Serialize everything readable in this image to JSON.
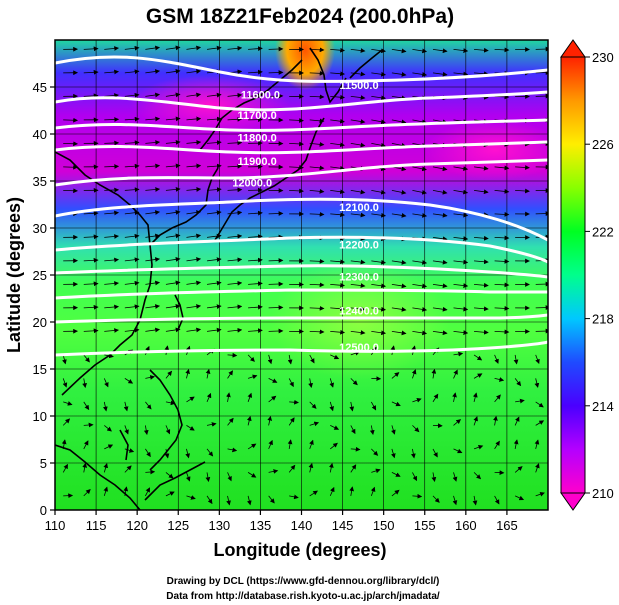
{
  "title": "GSM 18Z21Feb2024 (200.0hPa)",
  "xaxis": {
    "label": "Longitude (degrees)",
    "min": 110,
    "max": 170,
    "ticks": [
      110,
      115,
      120,
      125,
      130,
      135,
      140,
      145,
      150,
      155,
      160,
      165
    ]
  },
  "yaxis": {
    "label": "Latitude (degrees)",
    "min": 0,
    "max": 50,
    "ticks": [
      0,
      5,
      10,
      15,
      20,
      25,
      30,
      35,
      40,
      45
    ]
  },
  "colorbar": {
    "min": 210,
    "max": 230,
    "ticks": [
      210,
      214,
      218,
      222,
      226,
      230
    ]
  },
  "contours": [
    {
      "label": "11600.0",
      "label_lon": 135.0,
      "label_lat": 43.8
    },
    {
      "label": "11500.0",
      "label_lon": 147.0,
      "label_lat": 44.8
    },
    {
      "label": "11700.0",
      "label_lon": 134.6,
      "label_lat": 41.6
    },
    {
      "label": "11800.0",
      "label_lon": 134.6,
      "label_lat": 39.2
    },
    {
      "label": "11900.0",
      "label_lon": 134.6,
      "label_lat": 36.7
    },
    {
      "label": "12000.0",
      "label_lon": 134.0,
      "label_lat": 34.4
    },
    {
      "label": "12100.0",
      "label_lon": 147.0,
      "label_lat": 31.8
    },
    {
      "label": "12200.0",
      "label_lon": 147.0,
      "label_lat": 27.8
    },
    {
      "label": "12300.0",
      "label_lon": 147.0,
      "label_lat": 24.4
    },
    {
      "label": "12400.0",
      "label_lon": 147.0,
      "label_lat": 20.8
    },
    {
      "label": "12500.0",
      "label_lon": 147.0,
      "label_lat": 16.9
    }
  ],
  "footer": {
    "line1": "Drawing by DCL (https://www.gfd-dennou.org/library/dcl/)",
    "line2": "Data from http://database.rish.kyoto-u.ac.jp/arch/jmadata/"
  },
  "colors": {
    "fill_low": "#ff00cc",
    "fill_mid": "#00ff66",
    "fill_high": "#ff3300",
    "contour": "#ffffff",
    "vector": "#000000"
  }
}
